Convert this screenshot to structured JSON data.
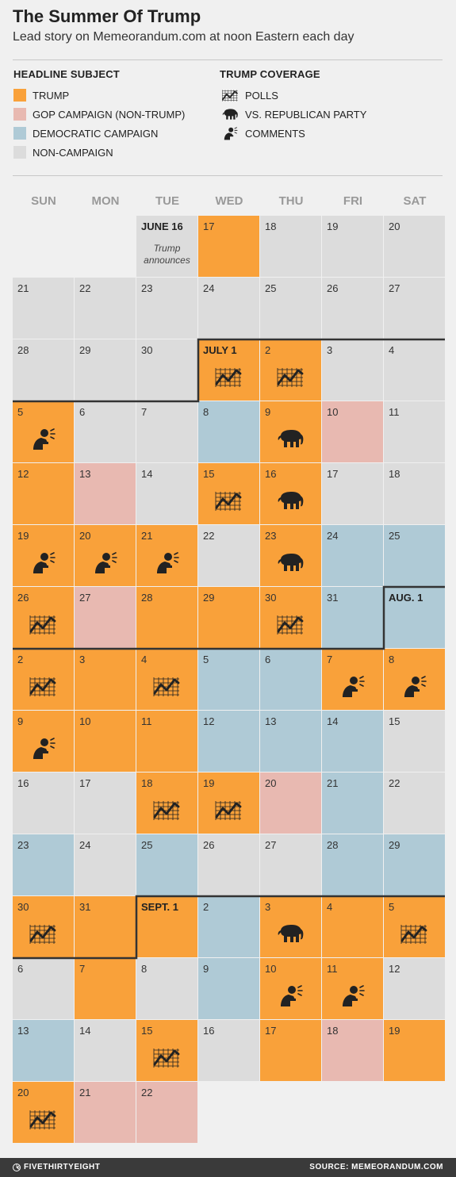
{
  "header": {
    "title": "The Summer Of Trump",
    "subtitle": "Lead story on Memeorandum.com at noon Eastern each day"
  },
  "legend": {
    "subject_title": "HEADLINE SUBJECT",
    "subjects": [
      {
        "key": "trump",
        "label": "TRUMP",
        "color": "#f9a13a"
      },
      {
        "key": "gop",
        "label": "GOP CAMPAIGN (NON-TRUMP)",
        "color": "#e8b9b1"
      },
      {
        "key": "dem",
        "label": "DEMOCRATIC CAMPAIGN",
        "color": "#afcad6"
      },
      {
        "key": "non",
        "label": "NON-CAMPAIGN",
        "color": "#dcdcdc"
      }
    ],
    "coverage_title": "TRUMP COVERAGE",
    "coverage": [
      {
        "key": "polls",
        "label": "POLLS",
        "icon": "polls-icon"
      },
      {
        "key": "gop",
        "label": "VS. REPUBLICAN PARTY",
        "icon": "elephant-icon"
      },
      {
        "key": "comments",
        "label": "COMMENTS",
        "icon": "comments-icon"
      }
    ]
  },
  "chart_data": {
    "type": "table",
    "weekdays": [
      "SUN",
      "MON",
      "TUE",
      "WED",
      "THU",
      "FRI",
      "SAT"
    ],
    "annotation": "Trump announces",
    "days": [
      {
        "label": "JUNE 16",
        "subject": "non",
        "coverage": null
      },
      {
        "label": "17",
        "subject": "trump",
        "coverage": null
      },
      {
        "label": "18",
        "subject": "non",
        "coverage": null
      },
      {
        "label": "19",
        "subject": "non",
        "coverage": null
      },
      {
        "label": "20",
        "subject": "non",
        "coverage": null
      },
      {
        "label": "21",
        "subject": "non",
        "coverage": null
      },
      {
        "label": "22",
        "subject": "non",
        "coverage": null
      },
      {
        "label": "23",
        "subject": "non",
        "coverage": null
      },
      {
        "label": "24",
        "subject": "non",
        "coverage": null
      },
      {
        "label": "25",
        "subject": "non",
        "coverage": null
      },
      {
        "label": "26",
        "subject": "non",
        "coverage": null
      },
      {
        "label": "27",
        "subject": "non",
        "coverage": null
      },
      {
        "label": "28",
        "subject": "non",
        "coverage": null
      },
      {
        "label": "29",
        "subject": "non",
        "coverage": null
      },
      {
        "label": "30",
        "subject": "non",
        "coverage": null
      },
      {
        "label": "JULY 1",
        "subject": "trump",
        "coverage": "polls"
      },
      {
        "label": "2",
        "subject": "trump",
        "coverage": "polls"
      },
      {
        "label": "3",
        "subject": "non",
        "coverage": null
      },
      {
        "label": "4",
        "subject": "non",
        "coverage": null
      },
      {
        "label": "5",
        "subject": "trump",
        "coverage": "comments"
      },
      {
        "label": "6",
        "subject": "non",
        "coverage": null
      },
      {
        "label": "7",
        "subject": "non",
        "coverage": null
      },
      {
        "label": "8",
        "subject": "dem",
        "coverage": null
      },
      {
        "label": "9",
        "subject": "trump",
        "coverage": "gop"
      },
      {
        "label": "10",
        "subject": "gop",
        "coverage": null
      },
      {
        "label": "11",
        "subject": "non",
        "coverage": null
      },
      {
        "label": "12",
        "subject": "trump",
        "coverage": null
      },
      {
        "label": "13",
        "subject": "gop",
        "coverage": null
      },
      {
        "label": "14",
        "subject": "non",
        "coverage": null
      },
      {
        "label": "15",
        "subject": "trump",
        "coverage": "polls"
      },
      {
        "label": "16",
        "subject": "trump",
        "coverage": "gop"
      },
      {
        "label": "17",
        "subject": "non",
        "coverage": null
      },
      {
        "label": "18",
        "subject": "non",
        "coverage": null
      },
      {
        "label": "19",
        "subject": "trump",
        "coverage": "comments"
      },
      {
        "label": "20",
        "subject": "trump",
        "coverage": "comments"
      },
      {
        "label": "21",
        "subject": "trump",
        "coverage": "comments"
      },
      {
        "label": "22",
        "subject": "non",
        "coverage": null
      },
      {
        "label": "23",
        "subject": "trump",
        "coverage": "gop"
      },
      {
        "label": "24",
        "subject": "dem",
        "coverage": null
      },
      {
        "label": "25",
        "subject": "dem",
        "coverage": null
      },
      {
        "label": "26",
        "subject": "trump",
        "coverage": "polls"
      },
      {
        "label": "27",
        "subject": "gop",
        "coverage": null
      },
      {
        "label": "28",
        "subject": "trump",
        "coverage": null
      },
      {
        "label": "29",
        "subject": "trump",
        "coverage": null
      },
      {
        "label": "30",
        "subject": "trump",
        "coverage": "polls"
      },
      {
        "label": "31",
        "subject": "dem",
        "coverage": null
      },
      {
        "label": "AUG. 1",
        "subject": "dem",
        "coverage": null
      },
      {
        "label": "2",
        "subject": "trump",
        "coverage": "polls"
      },
      {
        "label": "3",
        "subject": "trump",
        "coverage": null
      },
      {
        "label": "4",
        "subject": "trump",
        "coverage": "polls"
      },
      {
        "label": "5",
        "subject": "dem",
        "coverage": null
      },
      {
        "label": "6",
        "subject": "dem",
        "coverage": null
      },
      {
        "label": "7",
        "subject": "trump",
        "coverage": "comments"
      },
      {
        "label": "8",
        "subject": "trump",
        "coverage": "comments"
      },
      {
        "label": "9",
        "subject": "trump",
        "coverage": "comments"
      },
      {
        "label": "10",
        "subject": "trump",
        "coverage": null
      },
      {
        "label": "11",
        "subject": "trump",
        "coverage": null
      },
      {
        "label": "12",
        "subject": "dem",
        "coverage": null
      },
      {
        "label": "13",
        "subject": "dem",
        "coverage": null
      },
      {
        "label": "14",
        "subject": "dem",
        "coverage": null
      },
      {
        "label": "15",
        "subject": "non",
        "coverage": null
      },
      {
        "label": "16",
        "subject": "non",
        "coverage": null
      },
      {
        "label": "17",
        "subject": "non",
        "coverage": null
      },
      {
        "label": "18",
        "subject": "trump",
        "coverage": "polls"
      },
      {
        "label": "19",
        "subject": "trump",
        "coverage": "polls"
      },
      {
        "label": "20",
        "subject": "gop",
        "coverage": null
      },
      {
        "label": "21",
        "subject": "dem",
        "coverage": null
      },
      {
        "label": "22",
        "subject": "non",
        "coverage": null
      },
      {
        "label": "23",
        "subject": "dem",
        "coverage": null
      },
      {
        "label": "24",
        "subject": "non",
        "coverage": null
      },
      {
        "label": "25",
        "subject": "dem",
        "coverage": null
      },
      {
        "label": "26",
        "subject": "non",
        "coverage": null
      },
      {
        "label": "27",
        "subject": "non",
        "coverage": null
      },
      {
        "label": "28",
        "subject": "dem",
        "coverage": null
      },
      {
        "label": "29",
        "subject": "dem",
        "coverage": null
      },
      {
        "label": "30",
        "subject": "trump",
        "coverage": "polls"
      },
      {
        "label": "31",
        "subject": "trump",
        "coverage": null
      },
      {
        "label": "SEPT. 1",
        "subject": "trump",
        "coverage": null
      },
      {
        "label": "2",
        "subject": "dem",
        "coverage": null
      },
      {
        "label": "3",
        "subject": "trump",
        "coverage": "gop"
      },
      {
        "label": "4",
        "subject": "trump",
        "coverage": null
      },
      {
        "label": "5",
        "subject": "trump",
        "coverage": "polls"
      },
      {
        "label": "6",
        "subject": "non",
        "coverage": null
      },
      {
        "label": "7",
        "subject": "trump",
        "coverage": null
      },
      {
        "label": "8",
        "subject": "non",
        "coverage": null
      },
      {
        "label": "9",
        "subject": "dem",
        "coverage": null
      },
      {
        "label": "10",
        "subject": "trump",
        "coverage": "comments"
      },
      {
        "label": "11",
        "subject": "trump",
        "coverage": "comments"
      },
      {
        "label": "12",
        "subject": "non",
        "coverage": null
      },
      {
        "label": "13",
        "subject": "dem",
        "coverage": null
      },
      {
        "label": "14",
        "subject": "non",
        "coverage": null
      },
      {
        "label": "15",
        "subject": "trump",
        "coverage": "polls"
      },
      {
        "label": "16",
        "subject": "non",
        "coverage": null
      },
      {
        "label": "17",
        "subject": "trump",
        "coverage": null
      },
      {
        "label": "18",
        "subject": "gop",
        "coverage": null
      },
      {
        "label": "19",
        "subject": "trump",
        "coverage": null
      },
      {
        "label": "20",
        "subject": "trump",
        "coverage": "polls"
      },
      {
        "label": "21",
        "subject": "gop",
        "coverage": null
      },
      {
        "label": "22",
        "subject": "gop",
        "coverage": null
      }
    ]
  },
  "footer": {
    "brand": "FIVETHIRTYEIGHT",
    "brand_icon": "fivethirtyeight-logo-icon",
    "source": "SOURCE: MEMEORANDUM.COM"
  }
}
